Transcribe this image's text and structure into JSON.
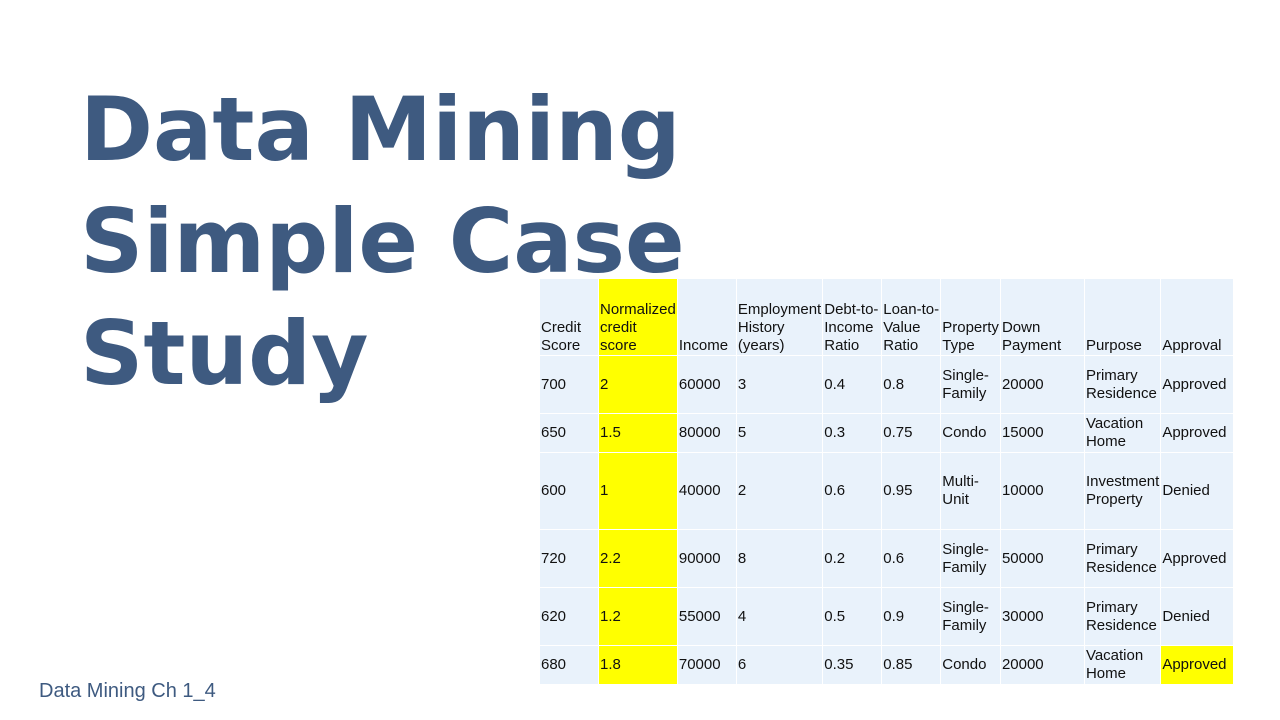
{
  "slide": {
    "title_lines": [
      "Data Mining",
      "Simple Case",
      "Study"
    ],
    "footer": "Data Mining Ch 1_4"
  },
  "table": {
    "headers": [
      "Credit Score",
      "Normalized credit score",
      "Income",
      "Employment History (years)",
      "Debt-to-Income Ratio",
      "Loan-to-Value Ratio",
      "Property Type",
      "Down Payment",
      "Purpose",
      "Approval"
    ],
    "rows": [
      [
        "700",
        "2",
        "60000",
        "3",
        "0.4",
        "0.8",
        "Single-Family",
        "20000",
        "Primary Residence",
        "Approved"
      ],
      [
        "650",
        "1.5",
        "80000",
        "5",
        "0.3",
        "0.75",
        "Condo",
        "15000",
        "Vacation Home",
        "Approved"
      ],
      [
        "600",
        "1",
        "40000",
        "2",
        "0.6",
        "0.95",
        "Multi-Unit",
        "10000",
        "Investment Property",
        "Denied"
      ],
      [
        "720",
        "2.2",
        "90000",
        "8",
        "0.2",
        "0.6",
        "Single-Family",
        "50000",
        "Primary Residence",
        "Approved"
      ],
      [
        "620",
        "1.2",
        "55000",
        "4",
        "0.5",
        "0.9",
        "Single-Family",
        "30000",
        "Primary Residence",
        "Denied"
      ],
      [
        "680",
        "1.8",
        "70000",
        "6",
        "0.35",
        "0.85",
        "Condo",
        "20000",
        "Vacation Home",
        "Approved"
      ]
    ],
    "highlight_color": "#ffff00",
    "cell_color": "#e9f2fb"
  },
  "colors": {
    "title": "#3e5a80",
    "footer": "#3e5a80"
  }
}
